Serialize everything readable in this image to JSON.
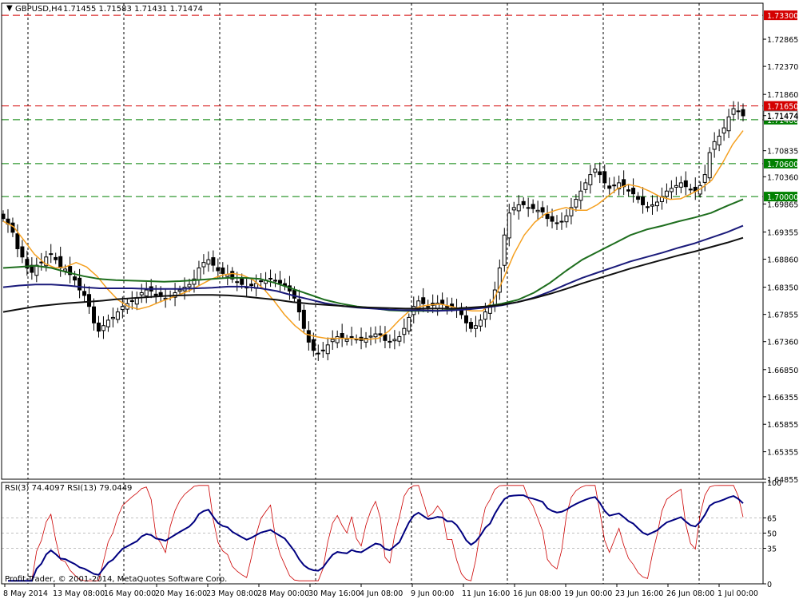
{
  "window": {
    "title": "GBPUSD,H4",
    "ohlc": "1.71455 1.71583 1.71431 1.71474",
    "copyright": "Profit-Trader, © 2001-2014, MetaQuotes Software Corp."
  },
  "price_axis": {
    "range": [
      1.64855,
      1.7352
    ],
    "ticks": [
      "1.72865",
      "1.72370",
      "1.71860",
      "1.71474",
      "1.70835",
      "1.70360",
      "1.69865",
      "1.69355",
      "1.68860",
      "1.68350",
      "1.67855",
      "1.67360",
      "1.66850",
      "1.66355",
      "1.65855",
      "1.65355",
      "1.64855"
    ]
  },
  "levels": [
    {
      "price": 1.733,
      "label": "1.73300",
      "color": "#d40000"
    },
    {
      "price": 1.7165,
      "label": "1.71650",
      "color": "#d40000"
    },
    {
      "price": 1.714,
      "label": "1.71400",
      "color": "#008000"
    },
    {
      "price": 1.706,
      "label": "1.70600",
      "color": "#008000"
    },
    {
      "price": 1.7,
      "label": "1.70000",
      "color": "#008000"
    }
  ],
  "current_price": {
    "label": "1.71474"
  },
  "rsi": {
    "header": "RSI(3) 74.4097  RSI(13) 79.0449",
    "range": [
      0,
      100
    ],
    "ticks": [
      "100",
      "65",
      "50",
      "35",
      "0"
    ],
    "levels": [
      65,
      50,
      35
    ]
  },
  "time_axis": {
    "labels": [
      "8 May 2014",
      "13 May 08:00",
      "16 May 00:00",
      "20 May 16:00",
      "23 May 08:00",
      "28 May 00:00",
      "30 May 16:00",
      "4 Jun 08:00",
      "9 Jun 00:00",
      "11 Jun 16:00",
      "16 Jun 08:00",
      "19 Jun 00:00",
      "23 Jun 16:00",
      "26 Jun 08:00",
      "1 Jul 00:00"
    ]
  },
  "colors": {
    "ma_fast": "#f5a020",
    "ma_mid": "#1e6e1e",
    "ma_slow": "#1a1a7a",
    "ma_long": "#101010",
    "rsi_fast": "#cc0000",
    "rsi_slow": "#000080"
  },
  "chart_data": {
    "type": "candlestick",
    "symbol": "GBPUSD",
    "timeframe": "H4",
    "ylim": [
      1.64855,
      1.7352
    ],
    "closes": [
      1.696,
      1.695,
      1.6935,
      1.6905,
      1.689,
      1.687,
      1.6862,
      1.6875,
      1.688,
      1.689,
      1.6895,
      1.6885,
      1.687,
      1.6868,
      1.6858,
      1.6848,
      1.683,
      1.682,
      1.68,
      1.677,
      1.6755,
      1.6765,
      1.6775,
      1.678,
      1.679,
      1.68,
      1.6805,
      1.681,
      1.6815,
      1.6825,
      1.683,
      1.6828,
      1.682,
      1.6818,
      1.6815,
      1.682,
      1.6825,
      1.683,
      1.6835,
      1.684,
      1.685,
      1.687,
      1.688,
      1.6885,
      1.6875,
      1.6865,
      1.686,
      1.6858,
      1.685,
      1.6845,
      1.684,
      1.6835,
      1.6838,
      1.6842,
      1.6846,
      1.6848,
      1.685,
      1.6846,
      1.6842,
      1.6838,
      1.6828,
      1.6815,
      1.679,
      1.676,
      1.6735,
      1.672,
      1.6715,
      1.672,
      1.673,
      1.674,
      1.6745,
      1.6742,
      1.674,
      1.6745,
      1.674,
      1.6738,
      1.6742,
      1.6746,
      1.675,
      1.6748,
      1.6738,
      1.6735,
      1.674,
      1.6745,
      1.676,
      1.678,
      1.68,
      1.681,
      1.6805,
      1.68,
      1.6802,
      1.6806,
      1.6805,
      1.68,
      1.68,
      1.6795,
      1.6785,
      1.677,
      1.676,
      1.6765,
      1.6775,
      1.679,
      1.68,
      1.683,
      1.687,
      1.693,
      1.697,
      1.698,
      1.6985,
      1.6985,
      1.698,
      1.6978,
      1.6975,
      1.6972,
      1.696,
      1.6955,
      1.6952,
      1.6955,
      1.6965,
      1.698,
      1.6995,
      1.701,
      1.7025,
      1.704,
      1.705,
      1.704,
      1.7025,
      1.7015,
      1.702,
      1.7025,
      1.7018,
      1.701,
      1.7005,
      1.6995,
      1.6985,
      1.698,
      1.6985,
      1.699,
      1.7,
      1.701,
      1.7015,
      1.702,
      1.7025,
      1.7018,
      1.7012,
      1.701,
      1.702,
      1.704,
      1.708,
      1.71,
      1.711,
      1.7125,
      1.7145,
      1.716,
      1.7155,
      1.7147
    ],
    "series": [
      {
        "name": "MA fast",
        "values": [
          1.6955,
          1.6945,
          1.692,
          1.6895,
          1.6878,
          1.687,
          1.6872,
          1.688,
          1.6872,
          1.6855,
          1.6832,
          1.6812,
          1.68,
          1.6795,
          1.68,
          1.6808,
          1.6815,
          1.6822,
          1.683,
          1.684,
          1.685,
          1.6857,
          1.686,
          1.6857,
          1.6848,
          1.6832,
          1.681,
          1.6785,
          1.6765,
          1.675,
          1.6745,
          1.6742,
          1.6742,
          1.6742,
          1.6741,
          1.674,
          1.6742,
          1.6755,
          1.6775,
          1.6792,
          1.68,
          1.6803,
          1.6804,
          1.68,
          1.6795,
          1.6792,
          1.6792,
          1.681,
          1.685,
          1.6895,
          1.693,
          1.6953,
          1.6968,
          1.6975,
          1.698,
          1.6975,
          1.6975,
          1.6985,
          1.7,
          1.7015,
          1.7022,
          1.7018,
          1.701,
          1.7,
          1.6995,
          1.6996,
          1.7005,
          1.7015,
          1.703,
          1.706,
          1.7095,
          1.712
        ]
      },
      {
        "name": "MA mid",
        "values": [
          1.687,
          1.6872,
          1.6874,
          1.687,
          1.6862,
          1.6855,
          1.685,
          1.6848,
          1.6847,
          1.6846,
          1.6845,
          1.6846,
          1.6848,
          1.685,
          1.6852,
          1.6852,
          1.685,
          1.6842,
          1.6832,
          1.6822,
          1.6812,
          1.6805,
          1.68,
          1.6797,
          1.6793,
          1.6792,
          1.6792,
          1.6792,
          1.6794,
          1.6797,
          1.68,
          1.6805,
          1.6812,
          1.6825,
          1.6843,
          1.6865,
          1.6885,
          1.69,
          1.6915,
          1.693,
          1.694,
          1.6947,
          1.6955,
          1.6962,
          1.697,
          1.6983,
          1.6995
        ]
      },
      {
        "name": "MA slow",
        "values": [
          1.6835,
          1.6838,
          1.684,
          1.684,
          1.6838,
          1.6835,
          1.6833,
          1.6833,
          1.6833,
          1.6832,
          1.6832,
          1.6832,
          1.6833,
          1.6834,
          1.6836,
          1.6836,
          1.6833,
          1.6828,
          1.682,
          1.6813,
          1.6806,
          1.6801,
          1.6798,
          1.6796,
          1.6794,
          1.6793,
          1.6793,
          1.6792,
          1.6793,
          1.6795,
          1.6798,
          1.6802,
          1.6808,
          1.6816,
          1.6827,
          1.684,
          1.6852,
          1.6862,
          1.6872,
          1.6882,
          1.689,
          1.6898,
          1.6907,
          1.6915,
          1.6925,
          1.6935,
          1.6947
        ]
      },
      {
        "name": "MA long",
        "values": [
          1.679,
          1.6795,
          1.68,
          1.6803,
          1.6806,
          1.6808,
          1.681,
          1.6813,
          1.6815,
          1.6817,
          1.6819,
          1.682,
          1.6821,
          1.6821,
          1.682,
          1.6818,
          1.6815,
          1.6812,
          1.6808,
          1.6805,
          1.6803,
          1.6801,
          1.6799,
          1.6798,
          1.6797,
          1.6796,
          1.6796,
          1.6796,
          1.6796,
          1.6798,
          1.68,
          1.6803,
          1.6808,
          1.6815,
          1.6823,
          1.6832,
          1.6842,
          1.6851,
          1.686,
          1.6869,
          1.6877,
          1.6885,
          1.6893,
          1.69,
          1.6908,
          1.6916,
          1.6925
        ]
      }
    ]
  }
}
